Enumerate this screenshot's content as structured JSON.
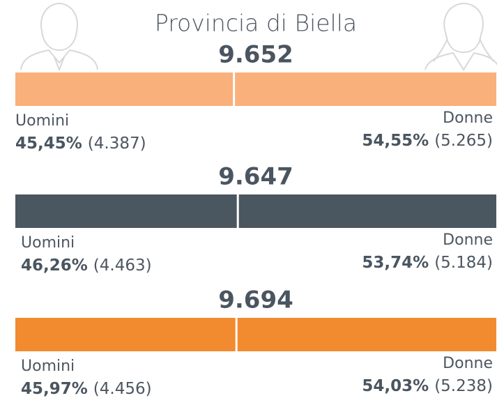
{
  "title": "Provincia di Biella",
  "blocks": [
    {
      "total": "9.652",
      "color": "#f9b07a",
      "men": {
        "label": "Uomini",
        "percent": 45.45,
        "percent_label": "45,45%",
        "count": "(4.387)"
      },
      "women": {
        "label": "Donne",
        "percent": 54.55,
        "percent_label": "54,55%",
        "count": "(5.265)"
      }
    },
    {
      "total": "9.647",
      "color": "#4a5660",
      "men": {
        "label": "Uomini",
        "percent": 46.26,
        "percent_label": "46,26%",
        "count": "(4.463)"
      },
      "women": {
        "label": "Donne",
        "percent": 53.74,
        "percent_label": "53,74%",
        "count": "(5.184)"
      }
    },
    {
      "total": "9.694",
      "color": "#f28a2f",
      "men": {
        "label": "Uomini",
        "percent": 45.97,
        "percent_label": "45,97%",
        "count": "(4.456)"
      },
      "women": {
        "label": "Donne",
        "percent": 54.03,
        "percent_label": "54,03%",
        "count": "(5.238)"
      }
    }
  ]
}
